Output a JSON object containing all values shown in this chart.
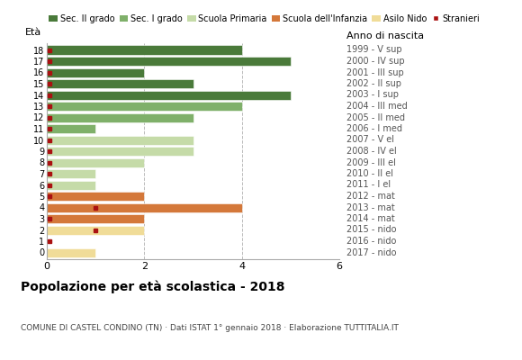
{
  "ages": [
    18,
    17,
    16,
    15,
    14,
    13,
    12,
    11,
    10,
    9,
    8,
    7,
    6,
    5,
    4,
    3,
    2,
    1,
    0
  ],
  "years": [
    "1999 - V sup",
    "2000 - IV sup",
    "2001 - III sup",
    "2002 - II sup",
    "2003 - I sup",
    "2004 - III med",
    "2005 - II med",
    "2006 - I med",
    "2007 - V el",
    "2008 - IV el",
    "2009 - III el",
    "2010 - II el",
    "2011 - I el",
    "2012 - mat",
    "2013 - mat",
    "2014 - mat",
    "2015 - nido",
    "2016 - nido",
    "2017 - nido"
  ],
  "bar_values": [
    4,
    5,
    2,
    3,
    5,
    4,
    3,
    1,
    3,
    3,
    2,
    1,
    1,
    2,
    4,
    2,
    2,
    0,
    1
  ],
  "bar_colors": [
    "#4a7a3a",
    "#4a7a3a",
    "#4a7a3a",
    "#4a7a3a",
    "#4a7a3a",
    "#7fb06a",
    "#7fb06a",
    "#7fb06a",
    "#c5dba8",
    "#c5dba8",
    "#c5dba8",
    "#c5dba8",
    "#c5dba8",
    "#d4783a",
    "#d4783a",
    "#d4783a",
    "#f0dc98",
    "#f0dc98",
    "#f0dc98"
  ],
  "stranieri_ages": [
    18,
    17,
    16,
    15,
    14,
    13,
    12,
    11,
    10,
    9,
    8,
    7,
    6,
    5,
    4,
    3,
    2,
    1
  ],
  "stranieri_x": [
    0.05,
    0.05,
    0.05,
    0.05,
    0.05,
    0.05,
    0.05,
    0.05,
    0.05,
    0.05,
    0.05,
    0.05,
    0.05,
    0.05,
    1.0,
    0.05,
    1.0,
    0.05
  ],
  "legend_labels": [
    "Sec. II grado",
    "Sec. I grado",
    "Scuola Primaria",
    "Scuola dell'Infanzia",
    "Asilo Nido",
    "Stranieri"
  ],
  "legend_colors": [
    "#4a7a3a",
    "#7fb06a",
    "#c5dba8",
    "#d4783a",
    "#f0dc98",
    "#aa1111"
  ],
  "xlim": [
    0,
    6
  ],
  "title": "Popolazione per età scolastica - 2018",
  "subtitle": "COMUNE DI CASTEL CONDINO (TN) · Dati ISTAT 1° gennaio 2018 · Elaborazione TUTTITALIA.IT",
  "ylabel_left": "Età",
  "ylabel_right": "Anno di nascita",
  "xticks": [
    0,
    2,
    4,
    6
  ],
  "background_color": "#ffffff",
  "bar_height": 0.8,
  "grid_color": "#bbbbbb",
  "stranieri_color": "#aa1111"
}
